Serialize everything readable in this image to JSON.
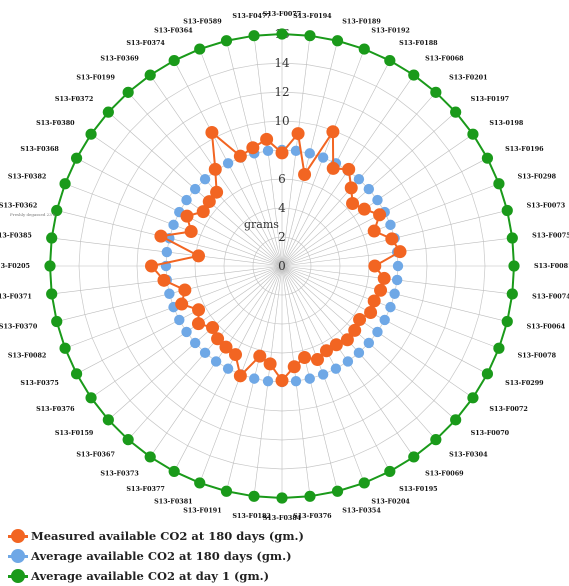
{
  "chart_data": {
    "type": "radar",
    "title": "",
    "radial_unit": "grams",
    "axis_note": "Freshly degassed 23 h",
    "rlim": [
      0,
      16
    ],
    "ticks": [
      0,
      2,
      4,
      6,
      8,
      10,
      12,
      14,
      16
    ],
    "categories": [
      "S13-F0077",
      "S13-F0194",
      "S13-F0189",
      "S13-F0192",
      "S13-F0188",
      "S13-F0068",
      "S13-F0201",
      "S13-F0197",
      "S13-0198",
      "S13-F0196",
      "S13-F0298",
      "S13-F0073",
      "S13-F0075",
      "S13-F0081",
      "S13-F0074",
      "S13-F0064",
      "S13-F0078",
      "S13-F0299",
      "S13-F0072",
      "S13-F0070",
      "S13-F0304",
      "S13-F0069",
      "S13-F0195",
      "S13-F0204",
      "S13-F0354",
      "S13-F0376",
      "S13-F0384",
      "S13-F0182",
      "S13-F0191",
      "S13-F0381",
      "S13-F0377",
      "S13-F0373",
      "S13-F0367",
      "S13-F0159",
      "S13-F0376",
      "S13-F0375",
      "S13-F0082",
      "S13-F0370",
      "S13-F0371",
      "S13-F0205",
      "S13-F0385",
      "S13-F0362",
      "S13-F0382",
      "S13-F0368",
      "S13-F0380",
      "S13-F0372",
      "S13-F0199",
      "S13-F0369",
      "S13-F0374",
      "S13-F0364",
      "S13-F0589",
      "S13-F0477"
    ],
    "series": [
      {
        "name": "Measured available CO2 at 180 days  (gm.)",
        "color": "#f26522",
        "values": [
          7.8,
          9.2,
          6.5,
          9.9,
          7.6,
          8.1,
          7.2,
          6.5,
          6.9,
          7.6,
          6.8,
          7.8,
          8.2,
          6.4,
          7.1,
          7.0,
          6.8,
          6.9,
          6.5,
          6.7,
          6.8,
          6.6,
          6.6,
          6.9,
          6.5,
          7.0,
          7.9,
          6.8,
          6.4,
          8.1,
          6.9,
          6.8,
          6.7,
          6.4,
          7.0,
          6.5,
          7.4,
          6.9,
          8.2,
          9.0,
          5.8,
          8.6,
          6.7,
          7.4,
          6.6,
          6.7,
          6.8,
          8.1,
          10.4,
          8.1,
          8.4,
          8.8
        ]
      },
      {
        "name": "Average available CO2 at 180 days (gm.)",
        "color": "#6fa8e6",
        "values": [
          8.0,
          8.0,
          8.0,
          8.0,
          8.0,
          8.0,
          8.0,
          8.0,
          8.0,
          8.0,
          8.0,
          8.0,
          8.0,
          8.0,
          8.0,
          8.0,
          8.0,
          8.0,
          8.0,
          8.0,
          8.0,
          8.0,
          8.0,
          8.0,
          8.0,
          8.0,
          8.0,
          8.0,
          8.0,
          8.0,
          8.0,
          8.0,
          8.0,
          8.0,
          8.0,
          8.0,
          8.0,
          8.0,
          8.0,
          8.0,
          8.0,
          8.0,
          8.0,
          8.0,
          8.0,
          8.0,
          8.0,
          8.0,
          8.0,
          8.0,
          8.0,
          8.0
        ]
      },
      {
        "name": "Average available CO2 at day 1  (gm.)",
        "color": "#1a9a1a",
        "values": [
          16,
          16,
          16,
          16,
          16,
          16,
          16,
          16,
          16,
          16,
          16,
          16,
          16,
          16,
          16,
          16,
          16,
          16,
          16,
          16,
          16,
          16,
          16,
          16,
          16,
          16,
          16,
          16,
          16,
          16,
          16,
          16,
          16,
          16,
          16,
          16,
          16,
          16,
          16,
          16,
          16,
          16,
          16,
          16,
          16,
          16,
          16,
          16,
          16,
          16,
          16,
          16
        ]
      }
    ],
    "legend_position": "bottom-left",
    "grid": true
  }
}
